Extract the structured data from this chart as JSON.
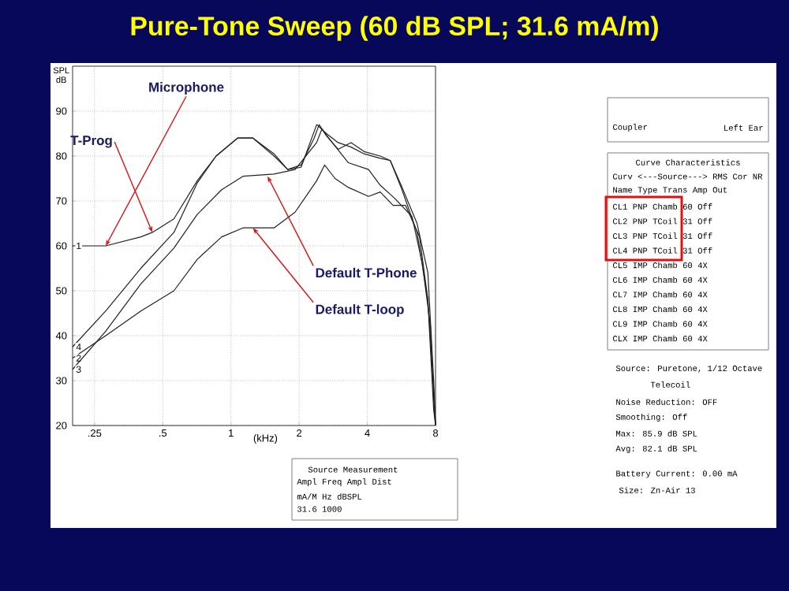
{
  "chart_data": {
    "type": "line",
    "title": "Pure-Tone Sweep (60 dB SPL; 31.6 mA/m)",
    "xlabel": "(kHz)",
    "ylabel": "SPL dB",
    "log": "x",
    "grid": true,
    "line_style": "solid",
    "xlim": [
      0.2,
      8
    ],
    "ylim": [
      20,
      100
    ],
    "xticks": [
      {
        "value": 0.25,
        "label": ".25"
      },
      {
        "value": 0.5,
        "label": ".5"
      },
      1,
      2,
      4,
      8
    ],
    "yticks": [
      20,
      30,
      40,
      50,
      60,
      70,
      80,
      90
    ],
    "series": [
      {
        "name": "1",
        "color": "#222222",
        "x": [
          0.2,
          0.28,
          0.4,
          0.45,
          0.56,
          0.71,
          0.86,
          1.07,
          1.25,
          1.55,
          1.78,
          2.04,
          2.33,
          2.45,
          2.64,
          2.97,
          3.39,
          3.87,
          4.56,
          5.05,
          5.64,
          6.63,
          7.4,
          7.85,
          8
        ],
        "values": [
          60,
          60,
          62,
          63,
          66,
          74.5,
          80,
          84,
          84,
          80.5,
          77,
          78,
          84,
          87,
          84.5,
          81.5,
          83,
          81,
          80,
          79,
          73.5,
          65,
          54,
          30,
          20
        ]
      },
      {
        "name": "2",
        "color": "#222222",
        "x": [
          0.2,
          0.28,
          0.4,
          0.56,
          0.71,
          0.91,
          1.13,
          1.55,
          1.92,
          2.39,
          2.59,
          2.88,
          3.3,
          4.05,
          4.56,
          5.2,
          5.9,
          6.8,
          7.4,
          7.85,
          8
        ],
        "values": [
          35,
          40,
          45.5,
          50,
          57,
          62,
          64,
          64,
          67.5,
          74.5,
          78,
          75,
          73,
          71,
          72,
          69,
          69,
          62,
          48,
          28,
          20
        ]
      },
      {
        "name": "3",
        "color": "#222222",
        "x": [
          0.2,
          0.28,
          0.4,
          0.56,
          0.71,
          0.91,
          1.13,
          1.55,
          1.92,
          2.39,
          2.52,
          2.8,
          3.3,
          4.05,
          4.56,
          5.3,
          6.3,
          7.0,
          7.6,
          7.85,
          8
        ],
        "values": [
          32.5,
          41,
          51.5,
          59.5,
          67,
          72.5,
          75.5,
          76,
          77,
          83,
          86,
          83,
          78.5,
          77,
          73.5,
          70.5,
          66.5,
          56,
          42,
          26,
          20
        ]
      },
      {
        "name": "4",
        "color": "#222222",
        "x": [
          0.2,
          0.28,
          0.4,
          0.56,
          0.71,
          0.86,
          1.07,
          1.25,
          1.55,
          1.78,
          2.04,
          2.39,
          2.64,
          2.97,
          3.39,
          3.87,
          4.56,
          5.05,
          5.64,
          6.63,
          7.4,
          7.85,
          8
        ],
        "values": [
          37.5,
          45.5,
          55,
          63,
          74,
          80,
          84,
          84,
          80,
          77,
          77.5,
          87,
          85,
          83,
          82,
          80.5,
          79.5,
          79,
          73,
          63,
          48,
          23.5,
          20
        ]
      }
    ],
    "annotations": [
      {
        "text": "Microphone",
        "x": 0.28,
        "y": 60
      },
      {
        "text": "T-Prog",
        "x": 0.45,
        "y": 63
      },
      {
        "text": "Default T-Phone",
        "x": 1.45,
        "y": 75.5
      },
      {
        "text": "Default  T-loop",
        "x": 1.25,
        "y": 64
      },
      "Coupler",
      "Left Ear",
      "Curve Characteristics",
      "Curv <---Source---> RMS Cor NR",
      "Name Type Trans Amp Out",
      "CL1 PNP Chamb 60 Off",
      "CL2 PNP TCoil 31 Off",
      "CL3 PNP TCoil 31 Off",
      "CL4 PNP TCoil 31 Off",
      "CL5 IMP Chamb 60 4X",
      "CL6 IMP Chamb 60 4X",
      "CL7 IMP Chamb 60 4X",
      "CL8 IMP Chamb 60 4X",
      "CL9 IMP Chamb 60 4X",
      "CLX IMP Chamb 60 4X",
      "Source: Puretone, 1/12 Octave",
      "Telecoil",
      "Noise Reduction: OFF",
      "Smoothing: Off",
      "Max: 85.9 dB SPL",
      "Avg: 82.1 dB SPL",
      "Battery Current: 0.00 mA",
      "Size: Zn-Air 13",
      "Source Measurement",
      "Ampl Freq Ampl Dist",
      "mA/M Hz dBSPL",
      "31.6 1000"
    ]
  }
}
